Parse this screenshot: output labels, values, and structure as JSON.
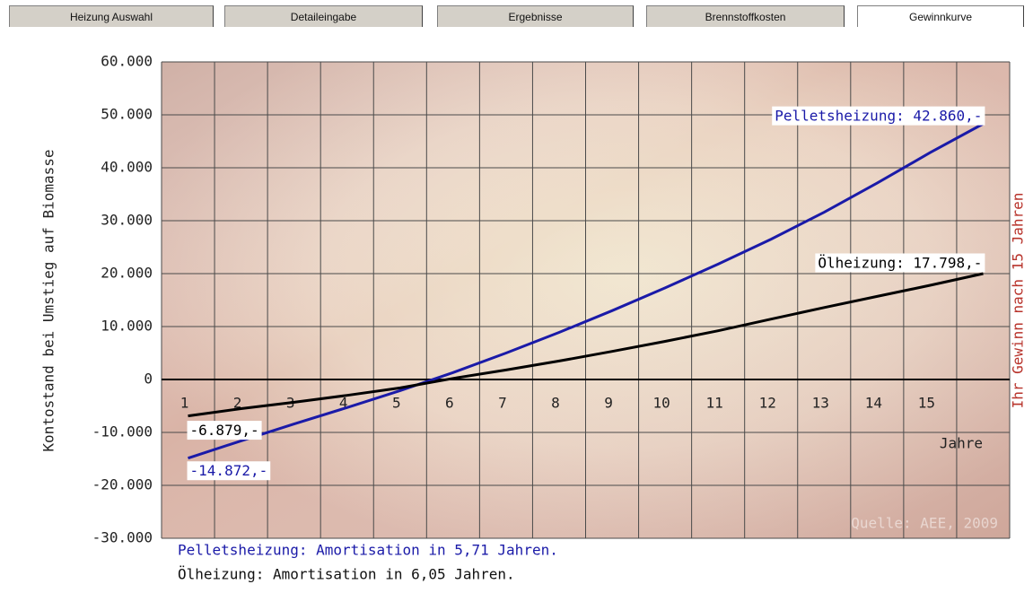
{
  "tabs": [
    "Heizung Auswahl",
    "Detaileingabe",
    "Ergebnisse",
    "Brennstoffkosten",
    "Gewinnkurve"
  ],
  "chart_data": {
    "type": "line",
    "ylabel": "Kontostand bei Umstieg auf Biomasse",
    "xlabel": "Jahre",
    "x": [
      1,
      2,
      3,
      4,
      5,
      6,
      7,
      8,
      9,
      10,
      11,
      12,
      13,
      14,
      15,
      16
    ],
    "xlim": [
      0.5,
      16.5
    ],
    "xticks": [
      1,
      2,
      3,
      4,
      5,
      6,
      7,
      8,
      9,
      10,
      11,
      12,
      13,
      14,
      15
    ],
    "ylim": [
      -30000,
      60000
    ],
    "yticks": [
      {
        "value": 60000,
        "label": "60.000"
      },
      {
        "value": 50000,
        "label": "50.000"
      },
      {
        "value": 40000,
        "label": "40.000"
      },
      {
        "value": 30000,
        "label": "30.000"
      },
      {
        "value": 20000,
        "label": "20.000"
      },
      {
        "value": 10000,
        "label": "10.000"
      },
      0,
      {
        "value": -10000,
        "label": "-10.000"
      },
      {
        "value": -20000,
        "label": "-20.000"
      },
      {
        "value": -30000,
        "label": "-30.000"
      }
    ],
    "grid": true,
    "series": [
      {
        "color": "#1a1aa8",
        "values": [
          -14872,
          -11600,
          -8400,
          -5300,
          -2100,
          1300,
          5000,
          8900,
          13000,
          17300,
          21800,
          26500,
          31600,
          37100,
          42860,
          48300
        ],
        "value_labels": [
          "-14.872,-",
          null,
          null,
          null,
          null,
          null,
          null,
          null,
          null,
          null,
          null,
          null,
          null,
          null,
          "Pelletsheizung: 42.860,-",
          null
        ]
      },
      {
        "color": "#000000",
        "values": [
          -6879,
          -5500,
          -4300,
          -3000,
          -1600,
          200,
          1800,
          3500,
          5300,
          7200,
          9200,
          11400,
          13600,
          15700,
          17798,
          20000
        ],
        "value_labels": [
          "-6.879,-",
          null,
          null,
          null,
          null,
          null,
          null,
          null,
          null,
          null,
          null,
          null,
          null,
          null,
          "Ölheizung: 17.798,-",
          null
        ]
      }
    ],
    "annotations": [
      "Ihr Gewinn nach 15 Jahren",
      "Quelle: AEE, 2009",
      "Pelletsheizung: Amortisation in 5,71 Jahren.",
      "Ölheizung: Amortisation in 6,05 Jahren."
    ]
  }
}
